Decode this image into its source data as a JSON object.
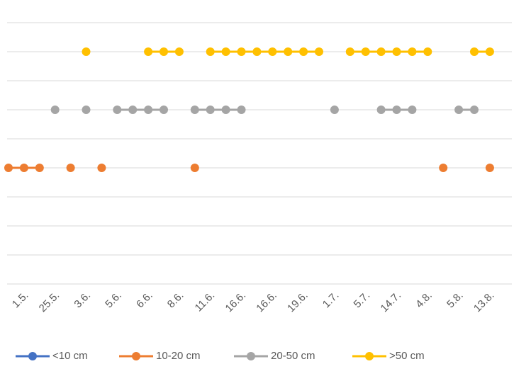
{
  "chart_data": {
    "type": "line",
    "categories": [
      null,
      "1.5.",
      null,
      "25.5.",
      null,
      "3.6.",
      null,
      "5.6.",
      null,
      "6.6.",
      null,
      "8.6.",
      null,
      "11.6.",
      null,
      "16.6.",
      null,
      "16.6.",
      null,
      "19.6.",
      null,
      "1.7.",
      null,
      "5.7.",
      null,
      "14.7.",
      null,
      "4.8.",
      null,
      "5.8.",
      null,
      "13.8."
    ],
    "series": [
      {
        "name": "<10 cm",
        "color": "#4472c4",
        "values": [
          null,
          null,
          null,
          null,
          null,
          null,
          null,
          null,
          null,
          null,
          null,
          null,
          null,
          null,
          null,
          null,
          null,
          null,
          null,
          null,
          null,
          null,
          null,
          null,
          null,
          null,
          null,
          null,
          null,
          null,
          null,
          null
        ]
      },
      {
        "name": "10-20 cm",
        "color": "#ed7d31",
        "values": [
          4,
          4,
          4,
          null,
          4,
          null,
          4,
          null,
          null,
          null,
          null,
          null,
          4,
          null,
          null,
          null,
          null,
          null,
          null,
          null,
          null,
          null,
          null,
          null,
          null,
          null,
          null,
          null,
          4,
          null,
          null,
          4
        ]
      },
      {
        "name": "20-50 cm",
        "color": "#a5a5a5",
        "values": [
          null,
          null,
          null,
          6,
          null,
          6,
          null,
          6,
          6,
          6,
          6,
          null,
          6,
          6,
          6,
          6,
          null,
          null,
          null,
          null,
          null,
          6,
          null,
          null,
          6,
          6,
          6,
          null,
          null,
          6,
          6,
          null
        ]
      },
      {
        "name": ">50 cm",
        "color": "#ffc000",
        "values": [
          null,
          null,
          null,
          null,
          null,
          8,
          null,
          null,
          null,
          8,
          8,
          8,
          null,
          8,
          8,
          8,
          8,
          8,
          8,
          8,
          8,
          null,
          8,
          8,
          8,
          8,
          8,
          8,
          null,
          null,
          8,
          8
        ]
      }
    ],
    "ylim": [
      0,
      9
    ],
    "yticks": [
      0,
      1,
      2,
      3,
      4,
      5,
      6,
      7,
      8,
      9
    ],
    "grid": true
  }
}
